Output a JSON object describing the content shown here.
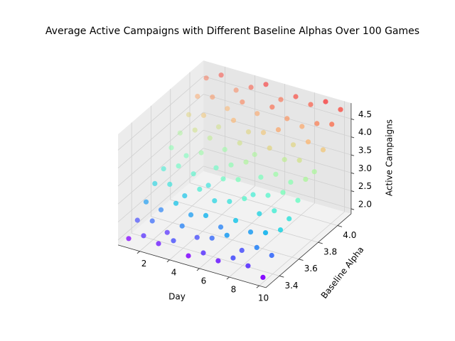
{
  "chart_data": {
    "type": "scatter3d",
    "title": "Average Active Campaigns with Different Baseline Alphas Over 100 Games",
    "xlabel": "Day",
    "ylabel": "Baseline Alpha",
    "zlabel": "Active Campaigns",
    "days": [
      1,
      2,
      3,
      4,
      5,
      6,
      7,
      8,
      9,
      10
    ],
    "alphas": [
      3.3,
      3.39,
      3.48,
      3.57,
      3.66,
      3.74,
      3.83,
      3.92,
      4.01,
      4.1
    ],
    "z": [
      [
        2.0,
        2.2,
        2.1,
        2.3,
        2.0,
        2.2,
        2.1,
        2.3,
        2.2,
        2.0
      ],
      [
        2.3,
        2.4,
        2.2,
        2.5,
        2.3,
        2.4,
        2.6,
        2.3,
        2.5,
        2.4
      ],
      [
        2.6,
        2.5,
        2.8,
        2.6,
        2.7,
        2.5,
        2.8,
        2.6,
        2.7,
        2.9
      ],
      [
        2.9,
        3.0,
        2.8,
        3.1,
        2.9,
        3.0,
        3.2,
        2.9,
        3.1,
        3.0
      ],
      [
        3.1,
        3.3,
        3.2,
        3.0,
        3.3,
        3.4,
        3.1,
        3.2,
        3.4,
        3.3
      ],
      [
        3.5,
        3.4,
        3.6,
        3.3,
        3.5,
        3.7,
        3.4,
        3.6,
        3.5,
        3.7
      ],
      [
        3.7,
        3.9,
        3.8,
        3.6,
        3.9,
        3.7,
        4.0,
        3.8,
        3.9,
        3.7
      ],
      [
        4.0,
        4.1,
        3.9,
        4.2,
        4.0,
        4.1,
        4.3,
        4.0,
        4.2,
        4.1
      ],
      [
        4.3,
        4.4,
        4.2,
        4.5,
        4.3,
        4.6,
        4.4,
        4.3,
        4.5,
        4.6
      ],
      [
        4.6,
        4.8,
        4.5,
        4.7,
        4.9,
        4.6,
        4.8,
        4.7,
        4.9,
        4.8
      ]
    ],
    "colormap": "rainbow",
    "xlim": [
      0.55,
      10.45
    ],
    "xticks": [
      2,
      4,
      6,
      8,
      10
    ],
    "ylim": [
      3.26,
      4.14
    ],
    "yticks": [
      3.4,
      3.6,
      3.8,
      {
        "value": 4,
        "label": "4.0"
      }
    ],
    "zlim": [
      1.86,
      4.94
    ],
    "zticks": [
      {
        "value": 2,
        "label": "2.0"
      },
      2.5,
      {
        "value": 3,
        "label": "3.0"
      },
      3.5,
      {
        "value": 4,
        "label": "4.0"
      },
      4.5
    ],
    "grid": true
  }
}
